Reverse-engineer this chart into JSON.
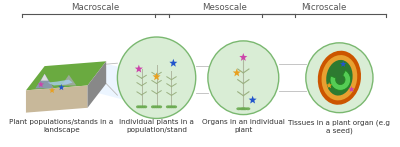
{
  "background_color": "#ffffff",
  "fig_width": 4.0,
  "fig_height": 1.47,
  "dpi": 100,
  "title_macroscale": "Macroscale",
  "title_mesoscale": "Mesoscale",
  "title_microscale": "Microscale",
  "label1": "Plant populations/stands in a\nlandscape",
  "label2": "Individual plants in a\npopulation/stand",
  "label3": "Organs in an individual\nplant",
  "label4": "Tissues in a plant organ (e.g\na seed)",
  "circle_color": "#d9edd5",
  "circle_edge": "#7ab870",
  "bracket_color": "#555555",
  "star_pink": "#cc44aa",
  "star_orange": "#e8a020",
  "star_blue": "#2255cc",
  "label_fontsize": 5.2,
  "scale_fontsize": 6.2,
  "land_top": "#6aaa40",
  "land_side_right": "#888888",
  "land_side_front": "#c8b89a",
  "land_rock1": "#888888",
  "land_rock2": "#aaaaaa",
  "connector_color": "#bbbbbb",
  "seed_outer_color": "#cc5500",
  "seed_mid_color": "#e8a030",
  "seed_inner_color": "#2d7a30",
  "embryo_color": "#55cc55",
  "embryo_edge": "#228822"
}
